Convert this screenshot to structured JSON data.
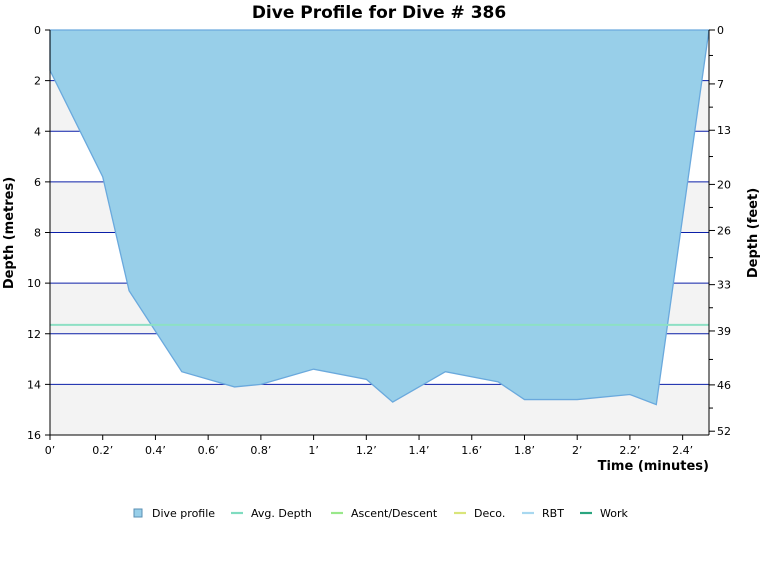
{
  "chart_data": {
    "type": "area",
    "title": "Dive Profile for Dive # 386",
    "xlabel": "Time (minutes)",
    "ylabel_left": "Depth (metres)",
    "ylabel_right": "Depth (feet)",
    "xlim": [
      0,
      2.5
    ],
    "ylim": [
      16,
      0
    ],
    "x_ticks": [
      {
        "value": 0,
        "label": "0’"
      },
      {
        "value": 0.2,
        "label": "0.2’"
      },
      {
        "value": 0.4,
        "label": "0.4’"
      },
      {
        "value": 0.6,
        "label": "0.6’"
      },
      {
        "value": 0.8,
        "label": "0.8’"
      },
      {
        "value": 1.0,
        "label": "1’"
      },
      {
        "value": 1.2,
        "label": "1.2’"
      },
      {
        "value": 1.4,
        "label": "1.4’"
      },
      {
        "value": 1.6,
        "label": "1.6’"
      },
      {
        "value": 1.8,
        "label": "1.8’"
      },
      {
        "value": 2.0,
        "label": "2’"
      },
      {
        "value": 2.2,
        "label": "2.2’"
      },
      {
        "value": 2.4,
        "label": "2.4’"
      }
    ],
    "y_ticks_left": [
      0,
      2,
      4,
      6,
      8,
      10,
      12,
      14,
      16
    ],
    "y_ticks_right": [
      {
        "value_m": 0,
        "label": "0"
      },
      {
        "value_m": 2.13,
        "label": "7"
      },
      {
        "value_m": 3.96,
        "label": "13"
      },
      {
        "value_m": 6.1,
        "label": "20"
      },
      {
        "value_m": 7.92,
        "label": "26"
      },
      {
        "value_m": 10.06,
        "label": "33"
      },
      {
        "value_m": 11.89,
        "label": "39"
      },
      {
        "value_m": 14.02,
        "label": "46"
      },
      {
        "value_m": 15.85,
        "label": "52"
      }
    ],
    "y_minor_ticks_right_feet": [
      3.3,
      10,
      16.4,
      23,
      29.5,
      36,
      42.7,
      49
    ],
    "series": [
      {
        "name": "Dive profile",
        "color": "#98cfe9",
        "x": [
          0,
          0.2,
          0.3,
          0.5,
          0.7,
          0.8,
          1.0,
          1.2,
          1.3,
          1.5,
          1.7,
          1.8,
          2.0,
          2.2,
          2.3,
          2.5
        ],
        "y": [
          1.6,
          5.8,
          10.3,
          13.5,
          14.1,
          14.0,
          13.4,
          13.8,
          14.7,
          13.5,
          13.9,
          14.6,
          14.6,
          14.4,
          14.8,
          0
        ]
      },
      {
        "name": "Avg. Depth",
        "color": "#8de0c4",
        "x": [
          0,
          2.5
        ],
        "y": [
          11.65,
          11.65
        ]
      }
    ],
    "legend": {
      "placement": "bottom",
      "items": [
        {
          "name": "Dive profile",
          "color": "#98cfe9",
          "shape": "box"
        },
        {
          "name": "Avg. Depth",
          "color": "#7fdcc0",
          "shape": "line"
        },
        {
          "name": "Ascent/Descent",
          "color": "#99e88a",
          "shape": "line"
        },
        {
          "name": "Deco.",
          "color": "#d9e57a",
          "shape": "line"
        },
        {
          "name": "RBT",
          "color": "#a8d8f0",
          "shape": "line"
        },
        {
          "name": "Work",
          "color": "#2aa57f",
          "shape": "line"
        }
      ]
    },
    "grid": true,
    "grid_color": "#0b1fa8",
    "band_color": "#f3f3f3"
  }
}
